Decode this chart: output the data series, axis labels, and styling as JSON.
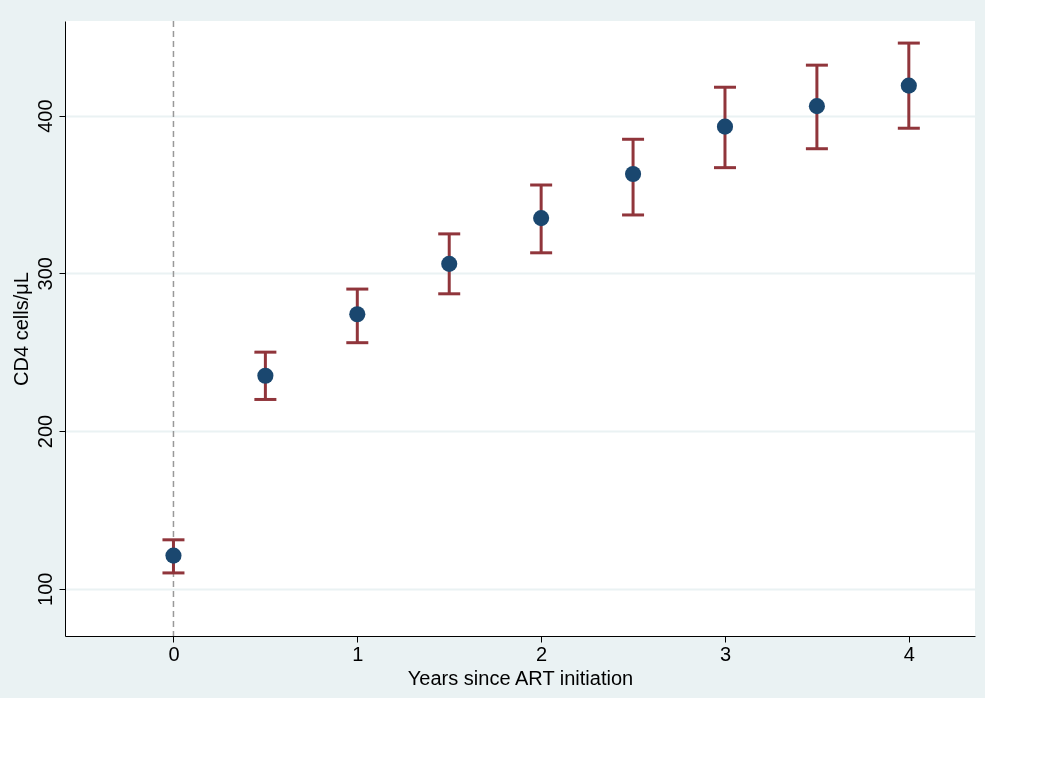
{
  "chart_data": {
    "type": "scatter",
    "xlabel": "Years since ART initiation",
    "ylabel": "CD4 cells/μL",
    "x": [
      0,
      0.5,
      1,
      1.5,
      2,
      2.5,
      3,
      3.5,
      4
    ],
    "values": [
      121,
      235,
      274,
      306,
      335,
      363,
      393,
      406,
      419
    ],
    "colors": [
      "#1a476f",
      "#1a476f",
      "#1a476f",
      "#1a476f",
      "#1a476f",
      "#1a476f",
      "#1a476f",
      "#1a476f",
      "#1a476f"
    ],
    "errors": [
      [
        110,
        131
      ],
      [
        220,
        250
      ],
      [
        256,
        290
      ],
      [
        287,
        325
      ],
      [
        313,
        356
      ],
      [
        337,
        385
      ],
      [
        367,
        418
      ],
      [
        379,
        432
      ],
      [
        392,
        446
      ]
    ],
    "xlim": [
      -0.59,
      4.36
    ],
    "xticks": [
      0,
      1,
      2,
      3,
      4
    ],
    "ylim": [
      70,
      460
    ],
    "yticks": [
      100,
      200,
      300,
      400
    ],
    "grid": "y",
    "marker": "circle",
    "ref_lines": [
      {
        "axis": "x",
        "value": 0,
        "color": "#999999",
        "line_style": "dashed"
      }
    ]
  }
}
